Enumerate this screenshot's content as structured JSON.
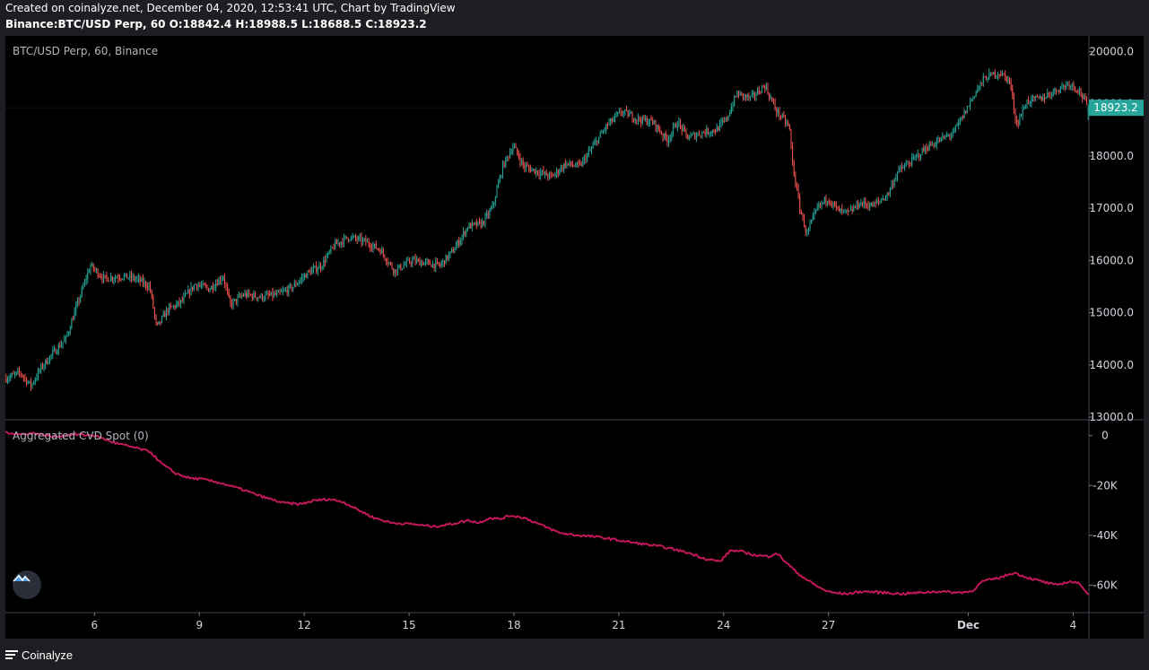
{
  "header": {
    "line1": "Created on coinalyze.net, December 04, 2020, 12:53:41 UTC, Chart by TradingView",
    "line2": "Binance:BTC/USD Perp, 60 O:18842.4 H:18988.5 L:18688.5 C:18923.2"
  },
  "footer": {
    "brand": "Coinalyze"
  },
  "colors": {
    "background": "#000000",
    "up": "#26a69a",
    "down": "#ef5350",
    "cvd_line": "#c2185b",
    "price_tag": "#26a69a",
    "axis_text": "#d1d4dc"
  },
  "chart_data": [
    {
      "type": "candlestick",
      "title": "BTC/USD Perp, 60, Binance",
      "symbol": "BTC/USD Perp",
      "exchange": "Binance",
      "interval": "60",
      "ohlc_last": {
        "open": 18842.4,
        "high": 18988.5,
        "low": 18688.5,
        "close": 18923.2
      },
      "last_price_label": "18923.2",
      "yticks": [
        "20000.0",
        "19000.0",
        "18000.0",
        "17000.0",
        "16000.0",
        "15000.0",
        "14000.0",
        "13000.0"
      ],
      "ylim": [
        12950,
        20300
      ],
      "x_tick_labels": [
        "6",
        "9",
        "12",
        "15",
        "18",
        "21",
        "24",
        "27",
        "Dec",
        "4"
      ],
      "x_range_days": [
        3.45,
        34.45
      ],
      "close_path": [
        [
          3.5,
          13750
        ],
        [
          3.9,
          13850
        ],
        [
          4.2,
          13600
        ],
        [
          4.5,
          13950
        ],
        [
          4.8,
          14200
        ],
        [
          5.2,
          14500
        ],
        [
          5.6,
          15300
        ],
        [
          5.9,
          15900
        ],
        [
          6.3,
          15650
        ],
        [
          6.8,
          15700
        ],
        [
          7.2,
          15650
        ],
        [
          7.6,
          15500
        ],
        [
          7.8,
          14700
        ],
        [
          8.1,
          15050
        ],
        [
          8.5,
          15200
        ],
        [
          8.9,
          15550
        ],
        [
          9.3,
          15450
        ],
        [
          9.7,
          15700
        ],
        [
          9.9,
          15150
        ],
        [
          10.3,
          15350
        ],
        [
          10.8,
          15300
        ],
        [
          11.3,
          15350
        ],
        [
          11.7,
          15500
        ],
        [
          12.1,
          15750
        ],
        [
          12.5,
          15900
        ],
        [
          12.9,
          16300
        ],
        [
          13.3,
          16450
        ],
        [
          13.8,
          16350
        ],
        [
          14.2,
          16200
        ],
        [
          14.6,
          15800
        ],
        [
          15.1,
          16000
        ],
        [
          15.5,
          15950
        ],
        [
          15.9,
          15900
        ],
        [
          16.3,
          16200
        ],
        [
          16.7,
          16650
        ],
        [
          17.1,
          16700
        ],
        [
          17.4,
          17000
        ],
        [
          17.7,
          17800
        ],
        [
          18.0,
          18200
        ],
        [
          18.3,
          17800
        ],
        [
          18.7,
          17700
        ],
        [
          19.1,
          17600
        ],
        [
          19.5,
          17850
        ],
        [
          19.9,
          17800
        ],
        [
          20.3,
          18200
        ],
        [
          20.7,
          18600
        ],
        [
          21.1,
          18850
        ],
        [
          21.6,
          18700
        ],
        [
          22.0,
          18650
        ],
        [
          22.4,
          18300
        ],
        [
          22.7,
          18650
        ],
        [
          23.0,
          18350
        ],
        [
          23.4,
          18450
        ],
        [
          23.8,
          18500
        ],
        [
          24.1,
          18700
        ],
        [
          24.4,
          19200
        ],
        [
          24.8,
          19100
        ],
        [
          25.2,
          19350
        ],
        [
          25.5,
          18900
        ],
        [
          25.9,
          18550
        ],
        [
          26.0,
          17800
        ],
        [
          26.2,
          17000
        ],
        [
          26.4,
          16500
        ],
        [
          26.7,
          17000
        ],
        [
          27.0,
          17200
        ],
        [
          27.3,
          16950
        ],
        [
          27.6,
          16900
        ],
        [
          27.9,
          17100
        ],
        [
          28.3,
          17050
        ],
        [
          28.7,
          17250
        ],
        [
          29.0,
          17700
        ],
        [
          29.4,
          17900
        ],
        [
          29.8,
          18150
        ],
        [
          30.2,
          18300
        ],
        [
          30.6,
          18450
        ],
        [
          30.9,
          18800
        ],
        [
          31.2,
          19200
        ],
        [
          31.5,
          19500
        ],
        [
          31.9,
          19600
        ],
        [
          32.2,
          19450
        ],
        [
          32.4,
          18600
        ],
        [
          32.7,
          19050
        ],
        [
          33.1,
          19100
        ],
        [
          33.5,
          19250
        ],
        [
          33.9,
          19400
        ],
        [
          34.2,
          19250
        ],
        [
          34.45,
          18923.2
        ]
      ]
    },
    {
      "type": "line",
      "title": "Aggregated CVD Spot (0)",
      "yticks": [
        "0",
        "-20K",
        "-40K",
        "-60K"
      ],
      "ylim": [
        -71000,
        6000
      ],
      "x_range_days": [
        3.45,
        34.45
      ],
      "points": [
        [
          3.45,
          1500
        ],
        [
          3.8,
          500
        ],
        [
          4.3,
          1000
        ],
        [
          4.8,
          -500
        ],
        [
          5.4,
          500
        ],
        [
          6.0,
          0
        ],
        [
          6.6,
          -3000
        ],
        [
          7.2,
          -5000
        ],
        [
          7.6,
          -6500
        ],
        [
          7.9,
          -11000
        ],
        [
          8.3,
          -15000
        ],
        [
          8.7,
          -17000
        ],
        [
          9.1,
          -17500
        ],
        [
          9.6,
          -19000
        ],
        [
          10.2,
          -21500
        ],
        [
          10.8,
          -24500
        ],
        [
          11.4,
          -27000
        ],
        [
          11.9,
          -27500
        ],
        [
          12.3,
          -26000
        ],
        [
          12.7,
          -25500
        ],
        [
          13.1,
          -26500
        ],
        [
          13.5,
          -29500
        ],
        [
          14.0,
          -33000
        ],
        [
          14.5,
          -35000
        ],
        [
          15.1,
          -35500
        ],
        [
          15.7,
          -36500
        ],
        [
          16.2,
          -35500
        ],
        [
          16.7,
          -34000
        ],
        [
          17.0,
          -35000
        ],
        [
          17.3,
          -33000
        ],
        [
          17.6,
          -33500
        ],
        [
          17.9,
          -32000
        ],
        [
          18.3,
          -33000
        ],
        [
          18.8,
          -36000
        ],
        [
          19.3,
          -39000
        ],
        [
          19.8,
          -40000
        ],
        [
          20.3,
          -40500
        ],
        [
          20.8,
          -41500
        ],
        [
          21.2,
          -42500
        ],
        [
          21.7,
          -43500
        ],
        [
          22.2,
          -44500
        ],
        [
          22.7,
          -46000
        ],
        [
          23.1,
          -47500
        ],
        [
          23.5,
          -49500
        ],
        [
          23.9,
          -50500
        ],
        [
          24.2,
          -46000
        ],
        [
          24.5,
          -46500
        ],
        [
          24.9,
          -48000
        ],
        [
          25.3,
          -48500
        ],
        [
          25.5,
          -47000
        ],
        [
          25.8,
          -51000
        ],
        [
          26.1,
          -55000
        ],
        [
          26.4,
          -58000
        ],
        [
          26.8,
          -61500
        ],
        [
          27.1,
          -63000
        ],
        [
          27.5,
          -63500
        ],
        [
          28.0,
          -62500
        ],
        [
          28.6,
          -63000
        ],
        [
          29.1,
          -63500
        ],
        [
          29.6,
          -63000
        ],
        [
          30.2,
          -62500
        ],
        [
          30.7,
          -63000
        ],
        [
          31.1,
          -62500
        ],
        [
          31.4,
          -58500
        ],
        [
          31.9,
          -57000
        ],
        [
          32.3,
          -55000
        ],
        [
          32.7,
          -57000
        ],
        [
          33.1,
          -58500
        ],
        [
          33.5,
          -60000
        ],
        [
          33.9,
          -58500
        ],
        [
          34.2,
          -59500
        ],
        [
          34.45,
          -64000
        ]
      ]
    }
  ]
}
